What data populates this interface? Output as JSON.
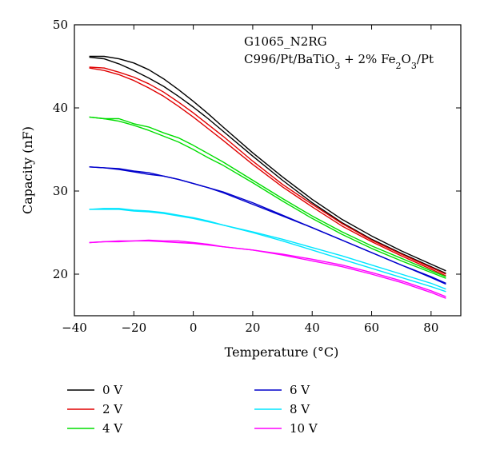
{
  "chart_data": {
    "type": "line",
    "xlabel": "Temperature (°C)",
    "ylabel": "Capacity (nF)",
    "xlim": [
      -40,
      90
    ],
    "ylim": [
      15,
      50
    ],
    "xticks": [
      -40,
      -20,
      0,
      20,
      40,
      60,
      80
    ],
    "yticks": [
      20,
      30,
      40,
      50
    ],
    "grid": false,
    "legend_position": "bottom",
    "annotation": {
      "line1": "G1065_N2RG",
      "line2_parts": [
        {
          "text": "C996/Pt/BaTiO",
          "sub": false
        },
        {
          "text": "3",
          "sub": true
        },
        {
          "text": " + 2% Fe",
          "sub": false
        },
        {
          "text": "2",
          "sub": true
        },
        {
          "text": "O",
          "sub": false
        },
        {
          "text": "3",
          "sub": true
        },
        {
          "text": "/Pt",
          "sub": false
        }
      ]
    },
    "series": [
      {
        "name": "0 V",
        "color": "#000000",
        "up": [
          [
            -35,
            46.2
          ],
          [
            -30,
            46.2
          ],
          [
            -25,
            45.9
          ],
          [
            -20,
            45.4
          ],
          [
            -15,
            44.6
          ],
          [
            -10,
            43.5
          ],
          [
            -5,
            42.2
          ],
          [
            0,
            40.8
          ],
          [
            5,
            39.3
          ],
          [
            10,
            37.7
          ],
          [
            20,
            34.6
          ],
          [
            30,
            31.7
          ],
          [
            40,
            29.0
          ],
          [
            50,
            26.6
          ],
          [
            60,
            24.6
          ],
          [
            70,
            22.8
          ],
          [
            80,
            21.2
          ],
          [
            85,
            20.4
          ]
        ],
        "down": [
          [
            85,
            20.1
          ],
          [
            80,
            20.9
          ],
          [
            70,
            22.5
          ],
          [
            60,
            24.2
          ],
          [
            50,
            26.2
          ],
          [
            40,
            28.6
          ],
          [
            30,
            31.3
          ],
          [
            20,
            34.2
          ],
          [
            10,
            37.2
          ],
          [
            5,
            38.7
          ],
          [
            0,
            40.1
          ],
          [
            -5,
            41.4
          ],
          [
            -10,
            42.6
          ],
          [
            -15,
            43.6
          ],
          [
            -20,
            44.5
          ],
          [
            -25,
            45.3
          ],
          [
            -30,
            45.9
          ],
          [
            -35,
            46.1
          ]
        ]
      },
      {
        "name": "2 V",
        "color": "#e00000",
        "up": [
          [
            -35,
            44.9
          ],
          [
            -30,
            44.8
          ],
          [
            -25,
            44.3
          ],
          [
            -20,
            43.7
          ],
          [
            -15,
            42.9
          ],
          [
            -10,
            41.9
          ],
          [
            -5,
            40.7
          ],
          [
            0,
            39.4
          ],
          [
            5,
            38.0
          ],
          [
            10,
            36.6
          ],
          [
            20,
            33.6
          ],
          [
            30,
            30.8
          ],
          [
            40,
            28.4
          ],
          [
            50,
            26.1
          ],
          [
            60,
            24.1
          ],
          [
            70,
            22.4
          ],
          [
            80,
            20.8
          ],
          [
            85,
            20.0
          ]
        ],
        "down": [
          [
            85,
            19.8
          ],
          [
            80,
            20.6
          ],
          [
            70,
            22.2
          ],
          [
            60,
            23.9
          ],
          [
            50,
            25.8
          ],
          [
            40,
            28.1
          ],
          [
            30,
            30.5
          ],
          [
            20,
            33.2
          ],
          [
            10,
            36.1
          ],
          [
            5,
            37.5
          ],
          [
            0,
            38.9
          ],
          [
            -5,
            40.2
          ],
          [
            -10,
            41.4
          ],
          [
            -15,
            42.4
          ],
          [
            -20,
            43.3
          ],
          [
            -25,
            44.0
          ],
          [
            -30,
            44.5
          ],
          [
            -35,
            44.8
          ]
        ]
      },
      {
        "name": "4 V",
        "color": "#00dd00",
        "up": [
          [
            -35,
            38.9
          ],
          [
            -30,
            38.7
          ],
          [
            -25,
            38.7
          ],
          [
            -20,
            38.1
          ],
          [
            -15,
            37.7
          ],
          [
            -10,
            37.0
          ],
          [
            -5,
            36.4
          ],
          [
            0,
            35.5
          ],
          [
            5,
            34.5
          ],
          [
            10,
            33.5
          ],
          [
            20,
            31.3
          ],
          [
            30,
            29.1
          ],
          [
            40,
            27.0
          ],
          [
            50,
            25.1
          ],
          [
            60,
            23.4
          ],
          [
            70,
            21.9
          ],
          [
            80,
            20.4
          ],
          [
            85,
            19.7
          ]
        ],
        "down": [
          [
            85,
            19.5
          ],
          [
            80,
            20.2
          ],
          [
            70,
            21.6
          ],
          [
            60,
            23.1
          ],
          [
            50,
            24.8
          ],
          [
            40,
            26.7
          ],
          [
            30,
            28.8
          ],
          [
            20,
            31.0
          ],
          [
            10,
            33.1
          ],
          [
            5,
            34.0
          ],
          [
            0,
            35.0
          ],
          [
            -5,
            35.9
          ],
          [
            -10,
            36.6
          ],
          [
            -15,
            37.3
          ],
          [
            -20,
            37.9
          ],
          [
            -25,
            38.4
          ],
          [
            -30,
            38.7
          ],
          [
            -35,
            38.9
          ]
        ]
      },
      {
        "name": "6 V",
        "color": "#0000cc",
        "up": [
          [
            -35,
            32.9
          ],
          [
            -30,
            32.8
          ],
          [
            -25,
            32.7
          ],
          [
            -20,
            32.4
          ],
          [
            -15,
            32.2
          ],
          [
            -10,
            31.8
          ],
          [
            -5,
            31.4
          ],
          [
            0,
            30.9
          ],
          [
            5,
            30.4
          ],
          [
            10,
            29.8
          ],
          [
            20,
            28.4
          ],
          [
            30,
            27.0
          ],
          [
            40,
            25.6
          ],
          [
            50,
            24.1
          ],
          [
            60,
            22.6
          ],
          [
            70,
            21.1
          ],
          [
            80,
            19.6
          ],
          [
            85,
            18.8
          ]
        ],
        "down": [
          [
            85,
            18.9
          ],
          [
            80,
            19.7
          ],
          [
            70,
            21.1
          ],
          [
            60,
            22.6
          ],
          [
            50,
            24.1
          ],
          [
            40,
            25.6
          ],
          [
            30,
            27.1
          ],
          [
            20,
            28.6
          ],
          [
            10,
            29.9
          ],
          [
            5,
            30.4
          ],
          [
            0,
            30.9
          ],
          [
            -5,
            31.4
          ],
          [
            -10,
            31.8
          ],
          [
            -15,
            32.0
          ],
          [
            -20,
            32.3
          ],
          [
            -25,
            32.6
          ],
          [
            -30,
            32.8
          ],
          [
            -35,
            32.9
          ]
        ]
      },
      {
        "name": "8 V",
        "color": "#00e5ff",
        "up": [
          [
            -35,
            27.8
          ],
          [
            -30,
            27.9
          ],
          [
            -25,
            27.9
          ],
          [
            -20,
            27.7
          ],
          [
            -15,
            27.6
          ],
          [
            -10,
            27.4
          ],
          [
            -5,
            27.1
          ],
          [
            0,
            26.8
          ],
          [
            5,
            26.4
          ],
          [
            10,
            25.9
          ],
          [
            20,
            25.0
          ],
          [
            30,
            24.0
          ],
          [
            40,
            22.9
          ],
          [
            50,
            21.8
          ],
          [
            60,
            20.7
          ],
          [
            70,
            19.6
          ],
          [
            80,
            18.5
          ],
          [
            85,
            17.9
          ]
        ],
        "down": [
          [
            85,
            18.2
          ],
          [
            80,
            18.9
          ],
          [
            70,
            20.0
          ],
          [
            60,
            21.1
          ],
          [
            50,
            22.2
          ],
          [
            40,
            23.2
          ],
          [
            30,
            24.2
          ],
          [
            20,
            25.1
          ],
          [
            10,
            25.9
          ],
          [
            5,
            26.3
          ],
          [
            0,
            26.7
          ],
          [
            -5,
            27.0
          ],
          [
            -10,
            27.3
          ],
          [
            -15,
            27.5
          ],
          [
            -20,
            27.6
          ],
          [
            -25,
            27.8
          ],
          [
            -30,
            27.8
          ],
          [
            -35,
            27.8
          ]
        ]
      },
      {
        "name": "10 V",
        "color": "#ff00ff",
        "up": [
          [
            -35,
            23.8
          ],
          [
            -30,
            23.9
          ],
          [
            -25,
            24.0
          ],
          [
            -20,
            24.0
          ],
          [
            -15,
            24.0
          ],
          [
            -10,
            23.9
          ],
          [
            -5,
            23.8
          ],
          [
            0,
            23.7
          ],
          [
            5,
            23.5
          ],
          [
            10,
            23.3
          ],
          [
            20,
            22.9
          ],
          [
            30,
            22.3
          ],
          [
            40,
            21.6
          ],
          [
            50,
            20.9
          ],
          [
            60,
            20.0
          ],
          [
            70,
            19.0
          ],
          [
            80,
            17.8
          ],
          [
            85,
            17.1
          ]
        ],
        "down": [
          [
            85,
            17.3
          ],
          [
            80,
            18.0
          ],
          [
            70,
            19.2
          ],
          [
            60,
            20.2
          ],
          [
            50,
            21.1
          ],
          [
            40,
            21.8
          ],
          [
            30,
            22.4
          ],
          [
            20,
            22.9
          ],
          [
            10,
            23.3
          ],
          [
            5,
            23.6
          ],
          [
            0,
            23.8
          ],
          [
            -5,
            24.0
          ],
          [
            -10,
            24.0
          ],
          [
            -15,
            24.1
          ],
          [
            -20,
            24.0
          ],
          [
            -25,
            23.9
          ],
          [
            -30,
            23.9
          ],
          [
            -35,
            23.8
          ]
        ]
      }
    ]
  }
}
